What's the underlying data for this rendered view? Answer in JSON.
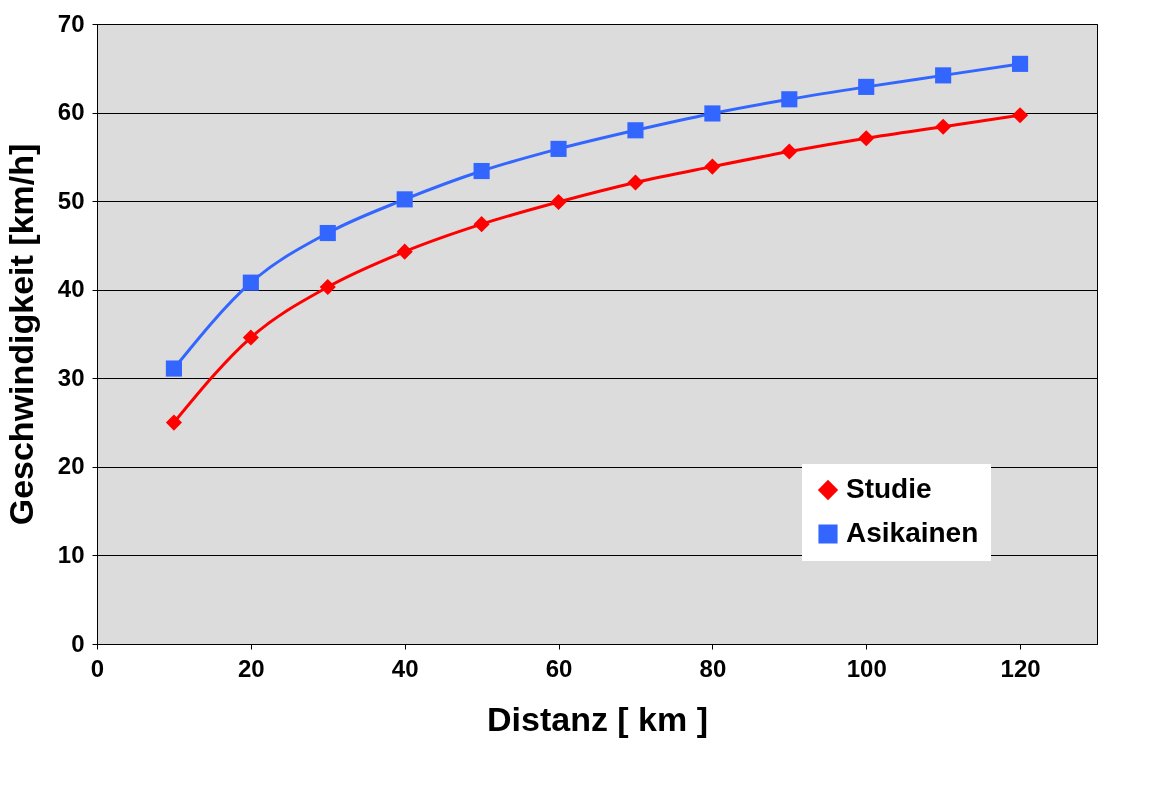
{
  "chart_data": {
    "type": "line",
    "xlabel": "Distanz [ km ]",
    "ylabel": "Geschwindigkeit [km/h]",
    "x": [
      10,
      20,
      30,
      40,
      50,
      60,
      70,
      80,
      90,
      100,
      110,
      120
    ],
    "series": [
      {
        "name": "Studie",
        "color": "#ff0000",
        "marker": "diamond",
        "values": [
          25.0,
          34.6,
          40.3,
          44.3,
          47.4,
          49.9,
          52.1,
          53.9,
          55.6,
          57.1,
          58.4,
          59.7
        ]
      },
      {
        "name": "Asikainen",
        "color": "#3366ff",
        "marker": "square",
        "values": [
          31.1,
          40.8,
          46.4,
          50.2,
          53.4,
          55.9,
          58.0,
          59.9,
          61.5,
          62.9,
          64.2,
          65.5
        ]
      }
    ],
    "xlim": [
      0,
      130
    ],
    "xticks": [
      0,
      20,
      40,
      60,
      80,
      100,
      120
    ],
    "ylim": [
      0,
      70
    ],
    "yticks": [
      0,
      10,
      20,
      30,
      40,
      50,
      60,
      70
    ],
    "grid": "y",
    "legend": "bottom right",
    "line_style": "solid"
  }
}
